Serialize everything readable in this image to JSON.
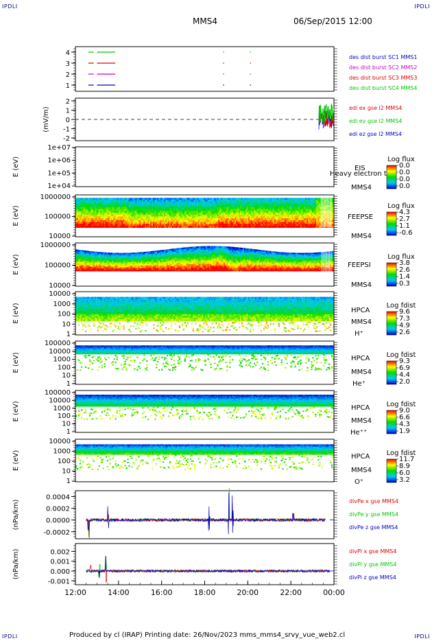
{
  "corner_tl": "IPDLI",
  "corner_tr": "IPDLI",
  "corner_bl": "IPDLI",
  "corner_br": "IPDLI",
  "header": {
    "spacecraft": "MMS4",
    "datetime": "06/Sep/2015 12:00"
  },
  "footer": {
    "text": "Produced by cl (IRAP)    Printing date: 26/Nov/2023    mms_mms4_srvy_vue_web2.cl"
  },
  "colors": {
    "red": "#e00000",
    "green": "#00c800",
    "blue": "#0000c8",
    "magenta": "#c800c8"
  },
  "chart_data": {
    "type": "multi-panel stack plot",
    "x_time_ticks": [
      "12:00",
      "14:00",
      "16:00",
      "18:00",
      "20:00",
      "22:00",
      "00:00"
    ],
    "panels": [
      {
        "id": "burst",
        "type": "timeline",
        "yticks": [
          "4",
          "3",
          "2",
          "1"
        ],
        "legend": [
          {
            "label": "des dist burst SC1 MMS1",
            "color": "#0000c8"
          },
          {
            "label": "des dist burst SC2 MMS2",
            "color": "#c800c8"
          },
          {
            "label": "des dist burst SC3 MMS3",
            "color": "#e00000"
          },
          {
            "label": "des dist burst SC4 MMS4",
            "color": "#00c800"
          }
        ],
        "rows": [
          {
            "level": 4,
            "color": "#00c800",
            "segments": [
              [
                12.6,
                12.85
              ],
              [
                13.0,
                13.85
              ],
              [
                18.85,
                18.9
              ],
              [
                20.1,
                20.15
              ]
            ]
          },
          {
            "level": 3,
            "color": "#e00000",
            "segments": [
              [
                12.6,
                12.85
              ],
              [
                13.0,
                13.85
              ],
              [
                18.85,
                18.9
              ],
              [
                20.1,
                20.15
              ]
            ]
          },
          {
            "level": 2,
            "color": "#c800c8",
            "segments": [
              [
                12.6,
                12.85
              ],
              [
                13.0,
                13.85
              ],
              [
                18.85,
                18.9
              ],
              [
                20.1,
                20.15
              ]
            ]
          },
          {
            "level": 1,
            "color": "#0000c8",
            "segments": [
              [
                12.6,
                12.85
              ],
              [
                13.0,
                13.85
              ],
              [
                18.85,
                18.9
              ],
              [
                20.1,
                20.15
              ]
            ]
          }
        ]
      },
      {
        "id": "edi",
        "type": "line",
        "ylabel": "(mV/m)",
        "yticks": [
          "2",
          "1",
          "0",
          "-1",
          "-2"
        ],
        "ylim": [
          -2.3,
          2.3
        ],
        "legend": [
          {
            "label": "edi ex gse l2 MMS4",
            "color": "#e00000"
          },
          {
            "label": "edi ey gse l2 MMS4",
            "color": "#00c800"
          },
          {
            "label": "edi ez gse l2 MMS4",
            "color": "#0000c8"
          }
        ],
        "data_interval": [
          23.3,
          24.0
        ]
      },
      {
        "id": "eis",
        "type": "spectrogram",
        "ylabel": "E (eV)",
        "yticks": [
          "1e+07",
          "1e+06",
          "1e+05",
          "1e+04"
        ],
        "labels": [
          "EIS",
          "MMS4"
        ],
        "overlay_text": "Heavy electron te",
        "colorbar": {
          "title": "Log flux",
          "ticks": [
            "0.0",
            "0.0",
            "0.0",
            "0.0"
          ]
        }
      },
      {
        "id": "feepse",
        "type": "spectrogram",
        "ylabel": "E (eV)",
        "yticks": [
          "1000000",
          "100000",
          "10000"
        ],
        "labels": [
          "FEEPSE",
          "MMS4"
        ],
        "colorbar": {
          "title": "Log flux",
          "ticks": [
            "4.3",
            "2.7",
            "1.1",
            "-0.6"
          ]
        }
      },
      {
        "id": "feepsi",
        "type": "spectrogram",
        "ylabel": "E (eV)",
        "yticks": [
          "1000000",
          "100000",
          "10000"
        ],
        "labels": [
          "FEEPSI",
          "MMS4"
        ],
        "colorbar": {
          "title": "Log flux",
          "ticks": [
            "3.8",
            "2.6",
            "1.4",
            "0.3"
          ]
        }
      },
      {
        "id": "hpca_h",
        "type": "spectrogram",
        "ylabel": "E (eV)",
        "yticks": [
          "10000",
          "1000",
          "100",
          "10",
          "1"
        ],
        "labels": [
          "HPCA",
          "MMS4",
          "H⁺"
        ],
        "colorbar": {
          "title": "Log fdist",
          "ticks": [
            "9.6",
            "7.3",
            "4.9",
            "2.6"
          ]
        }
      },
      {
        "id": "hpca_he",
        "type": "spectrogram",
        "ylabel": "E (eV)",
        "yticks": [
          "100000",
          "10000",
          "1000",
          "100",
          "10",
          "1"
        ],
        "labels": [
          "HPCA",
          "MMS4",
          "He⁺"
        ],
        "colorbar": {
          "title": "Log fdist",
          "ticks": [
            "9.3",
            "6.9",
            "4.4",
            "2.0"
          ]
        }
      },
      {
        "id": "hpca_hepp",
        "type": "spectrogram",
        "ylabel": "E (eV)",
        "yticks": [
          "100000",
          "10000",
          "1000",
          "100",
          "10",
          "1"
        ],
        "labels": [
          "HPCA",
          "MMS4",
          "He⁺⁺"
        ],
        "colorbar": {
          "title": "Log fdist",
          "ticks": [
            "9.0",
            "6.6",
            "4.3",
            "1.9"
          ]
        }
      },
      {
        "id": "hpca_o",
        "type": "spectrogram",
        "ylabel": "E (eV)",
        "yticks": [
          "10000",
          "1000",
          "100",
          "10",
          "1"
        ],
        "labels": [
          "HPCA",
          "MMS4",
          "O⁺"
        ],
        "colorbar": {
          "title": "Log fdist",
          "ticks": [
            "11.7",
            "8.9",
            "6.0",
            "3.2"
          ]
        }
      },
      {
        "id": "divpe",
        "type": "line",
        "ylabel": "(nPa/km)",
        "yticks": [
          "0.0004",
          "0.0002",
          "0.0000",
          "-0.0002"
        ],
        "ylim": [
          -0.00032,
          0.0005
        ],
        "legend": [
          {
            "label": "divPe x gse MMS4",
            "color": "#e00000"
          },
          {
            "label": "divPe y gse MMS4",
            "color": "#00c800"
          },
          {
            "label": "divPe z gse MMS4",
            "color": "#0000c8"
          }
        ]
      },
      {
        "id": "divpi",
        "type": "line",
        "ylabel": "(nPa/km)",
        "yticks": [
          "0.002",
          "0.001",
          "0.000",
          "-0.001"
        ],
        "ylim": [
          -0.0014,
          0.0028
        ],
        "legend": [
          {
            "label": "divPi x gse MMS4",
            "color": "#e00000"
          },
          {
            "label": "divPi y gse MMS4",
            "color": "#00c800"
          },
          {
            "label": "divPi z gse MMS4",
            "color": "#0000c8"
          }
        ]
      }
    ]
  }
}
